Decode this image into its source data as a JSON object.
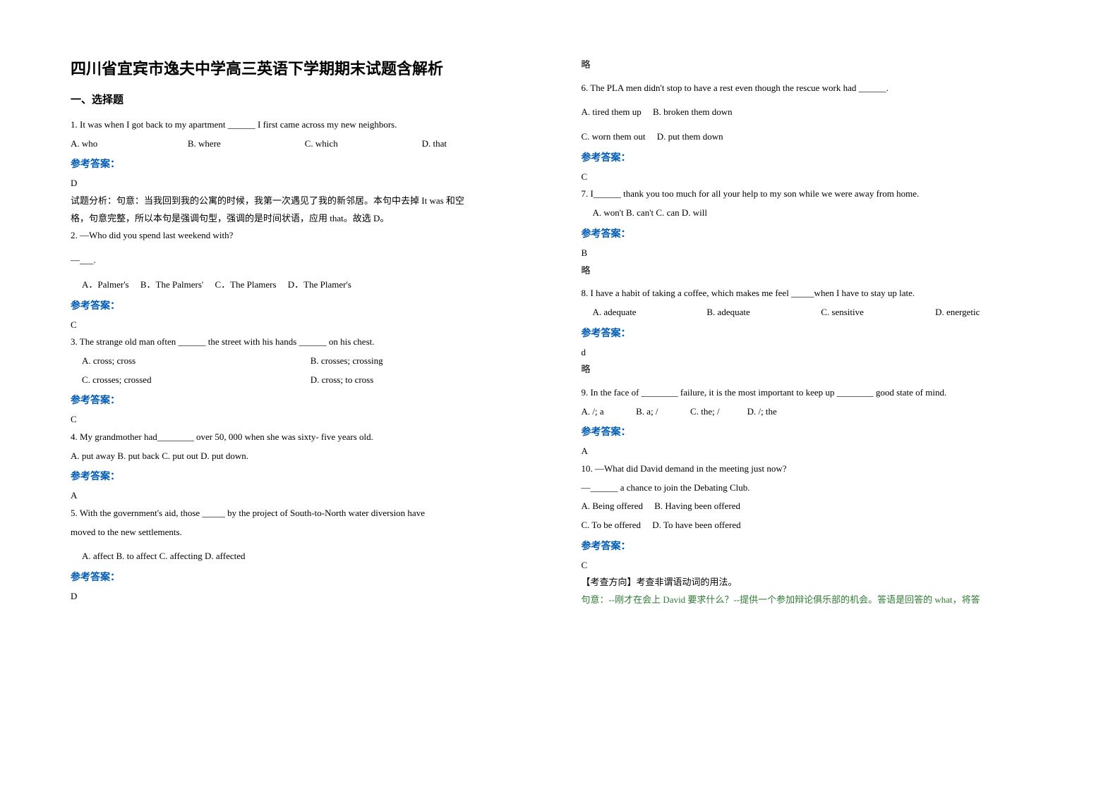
{
  "title": "四川省宜宾市逸夫中学高三英语下学期期末试题含解析",
  "section_heading": "一、选择题",
  "answer_label": "参考答案：",
  "left": {
    "q1": {
      "text": "1. It was when I got back to my apartment ______ I first came across my new neighbors.",
      "a": "A. who",
      "b": "B. where",
      "c": "C. which",
      "d": "D. that",
      "answer": "D",
      "explain1": "试题分析：句意：当我回到我的公寓的时候，我第一次遇见了我的新邻居。本句中去掉 It was 和空",
      "explain2": "格，句意完整，所以本句是强调句型，强调的是时间状语，应用 that。故选 D。"
    },
    "q2": {
      "text": "2. —Who did you spend last weekend with?",
      "dash": "—___.",
      "a": "A．Palmer's",
      "b": "B．The Palmers'",
      "c": "C．The Plamers",
      "d": "D．The Plamer's",
      "answer": "C"
    },
    "q3": {
      "text": "3. The strange old man often ______ the street with his hands ______ on his chest.",
      "a": "A. cross; cross",
      "b": "B. crosses; crossing",
      "c": "C. crosses; crossed",
      "d": "D. cross; to cross",
      "answer": "C"
    },
    "q4": {
      "text": "4. My grandmother had________ over 50, 000 when she was sixty- five years old.",
      "opts": "A. put away    B. put back    C. put out    D. put down.",
      "answer": "A"
    },
    "q5": {
      "text1": "5. With the government's aid, those _____ by the project of South-to-North water diversion have",
      "text2": "moved to the new settlements.",
      "opts": "A. affect    B. to affect    C. affecting    D. affected",
      "answer": "D"
    }
  },
  "right": {
    "lue": "略",
    "q6": {
      "text": "6. The PLA men didn't stop to have a rest even though the rescue work had ______.",
      "a": "A. tired them up",
      "b": "B. broken them down",
      "c": "C. worn them out",
      "d": "D. put them down",
      "answer": "C"
    },
    "q7": {
      "text": "7. I______ thank you too much for all your help to my son while we were away from home.",
      "opts": "A. won't   B. can't   C. can    D. will",
      "answer": "B"
    },
    "q8": {
      "text": "8. I have a habit of taking a coffee, which makes me feel _____when I have to stay up late.",
      "a": "A. adequate",
      "b": "B. adequate",
      "c": "C. sensitive",
      "d": "D. energetic",
      "answer": "d"
    },
    "q9": {
      "text": "9. In the face of ________ failure, it is the most important to keep up ________ good state of mind.",
      "opts": "A. /; a              B. a; /              C. the; /            D. /; the",
      "answer": "A"
    },
    "q10": {
      "text1": "10. —What did David demand in the meeting just now?",
      "text2": "—______ a chance to join the Debating Club.",
      "a": "A. Being offered",
      "b": "B. Having been offered",
      "c": "C. To be offered",
      "d": "D. To have been offered",
      "answer": "C",
      "explain1": "【考查方向】考查非谓语动词的用法。",
      "explain2": "句意：--刚才在会上 David 要求什么？--提供一个参加辩论俱乐部的机会。答语是回答的 what，将答"
    }
  }
}
